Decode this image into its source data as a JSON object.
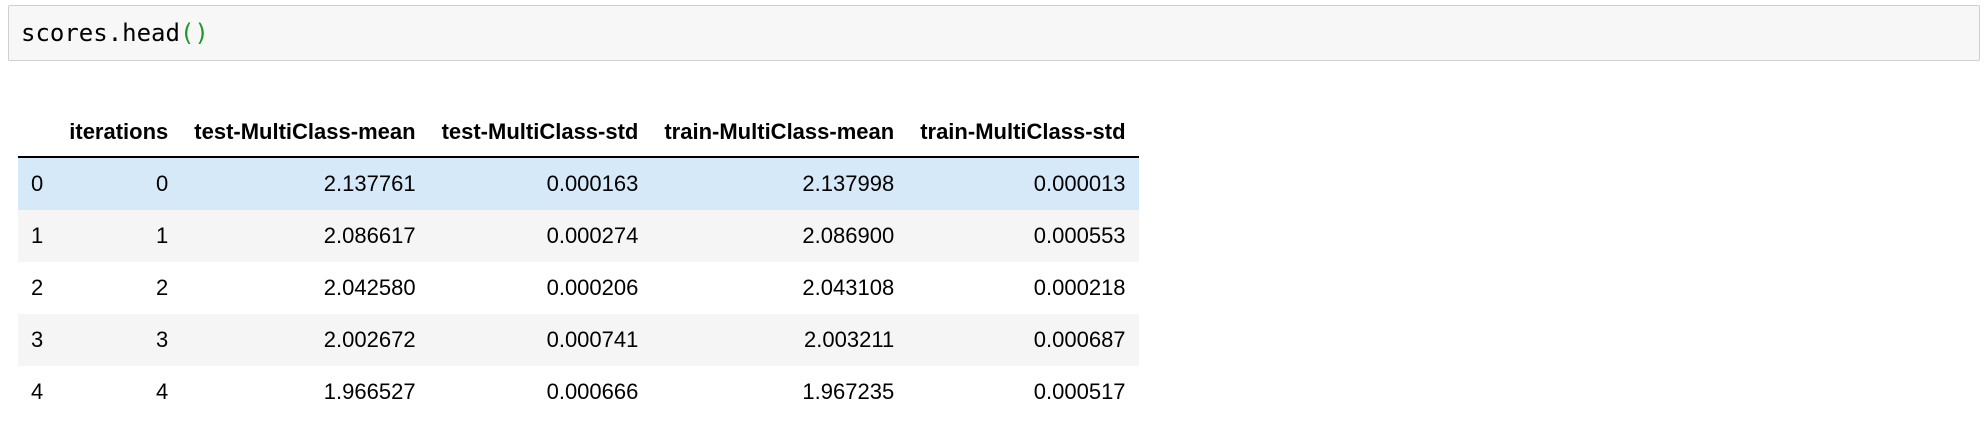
{
  "cell": {
    "code_object": "scores.head",
    "code_parens": "()"
  },
  "table": {
    "index_header": "",
    "columns": [
      "iterations",
      "test-MultiClass-mean",
      "test-MultiClass-std",
      "train-MultiClass-mean",
      "train-MultiClass-std"
    ],
    "rows": [
      {
        "index": "0",
        "cells": [
          "0",
          "2.137761",
          "0.000163",
          "2.137998",
          "0.000013"
        ]
      },
      {
        "index": "1",
        "cells": [
          "1",
          "2.086617",
          "0.000274",
          "2.086900",
          "0.000553"
        ]
      },
      {
        "index": "2",
        "cells": [
          "2",
          "2.042580",
          "0.000206",
          "2.043108",
          "0.000218"
        ]
      },
      {
        "index": "3",
        "cells": [
          "3",
          "2.002672",
          "0.000741",
          "2.003211",
          "0.000687"
        ]
      },
      {
        "index": "4",
        "cells": [
          "4",
          "1.966527",
          "0.000666",
          "1.967235",
          "0.000517"
        ]
      }
    ],
    "highlighted_row": 0,
    "highlight_color": "#d6e9f9",
    "stripe_color": "#f5f5f5"
  }
}
